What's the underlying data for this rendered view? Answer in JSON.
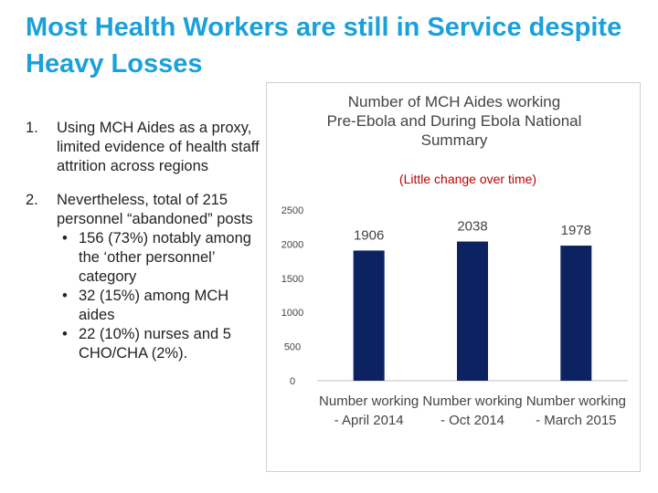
{
  "slide": {
    "title": "Most Health Workers are still in Service despite Heavy Losses"
  },
  "bullets": [
    {
      "number": "1.",
      "text": "Using MCH Aides as a proxy, limited evidence of health staff attrition across regions",
      "subitems": []
    },
    {
      "number": "2.",
      "text": "Nevertheless, total of 215 personnel “abandoned” posts",
      "subitems": [
        "156 (73%) notably among the ‘other personnel’ category",
        "32 (15%) among MCH aides",
        "22 (10%) nurses and 5 CHO/CHA (2%)."
      ]
    }
  ],
  "chart_data": {
    "type": "bar",
    "title": "Number of MCH Aides working Pre-Ebola and During Ebola National Summary",
    "subtitle": "(Little change over time)",
    "categories": [
      "Number working - April 2014",
      "Number working - Oct 2014",
      "Number working - March 2015"
    ],
    "values": [
      1906,
      2038,
      1978
    ],
    "data_labels": [
      "1906",
      "2038",
      "1978"
    ],
    "yticks": [
      0,
      500,
      1000,
      1500,
      2000,
      2500
    ],
    "ylim": [
      0,
      2500
    ],
    "xlabel": "",
    "ylabel": "",
    "grid": false,
    "colors": {
      "bar": "#0d2260",
      "title": "#444444",
      "subtitle": "#c00000",
      "axis": "#bfbfbf"
    }
  }
}
